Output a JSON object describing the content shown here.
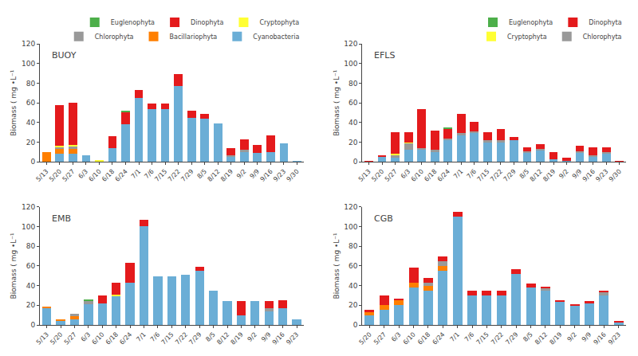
{
  "chart_data": [
    {
      "type": "bar",
      "stacked": true,
      "title": "BUOY",
      "ylabel": "Biomass ( mg •L⁻¹",
      "categories": [
        "5/13",
        "5/20",
        "5/27",
        "6/3",
        "6/10",
        "6/18",
        "6/24",
        "7/1",
        "7/6",
        "7/15",
        "7/22",
        "7/29",
        "8/5",
        "8/12",
        "8/19",
        "9/2",
        "9/9",
        "9/16",
        "9/23",
        "9/30"
      ],
      "series": [
        {
          "name": "Cyanobacteria",
          "color": "#6baed6",
          "values": [
            0,
            8,
            8,
            7,
            1,
            14,
            38,
            65,
            54,
            54,
            77,
            45,
            44,
            39,
            5,
            10,
            9,
            10,
            19,
            1
          ]
        },
        {
          "name": "Bacillariophyta",
          "color": "#ff7f00",
          "values": [
            10,
            5,
            5,
            0,
            0,
            0,
            0,
            0,
            0,
            0,
            0,
            0,
            0,
            0,
            0,
            0,
            0,
            0,
            0,
            0
          ]
        },
        {
          "name": "Chlorophyta",
          "color": "#999999",
          "values": [
            0,
            2,
            3,
            0,
            0,
            0,
            0,
            0,
            0,
            0,
            0,
            0,
            0,
            0,
            2,
            2,
            0,
            0,
            0,
            0
          ]
        },
        {
          "name": "Cryptophyta",
          "color": "#ffff33",
          "values": [
            0,
            1,
            1,
            0,
            1,
            0,
            0,
            0,
            0,
            0,
            0,
            0,
            0,
            0,
            0,
            0,
            0,
            0,
            0,
            0
          ]
        },
        {
          "name": "Dinophyta",
          "color": "#e41a1c",
          "values": [
            0,
            42,
            43,
            0,
            0,
            12,
            13,
            8,
            5,
            5,
            12,
            7,
            5,
            0,
            7,
            11,
            8,
            17,
            0,
            0
          ]
        },
        {
          "name": "Euglenophyta",
          "color": "#4daf4a",
          "values": [
            0,
            0,
            0,
            0,
            0,
            0,
            0.5,
            0,
            0,
            0,
            0,
            0,
            0,
            0,
            0,
            0,
            0,
            0,
            0,
            0
          ]
        }
      ],
      "ylim": [
        0,
        120
      ],
      "yticks": [
        0,
        20,
        40,
        60,
        80,
        100,
        120
      ],
      "grid": false,
      "legend": "upper right"
    },
    {
      "type": "bar",
      "stacked": true,
      "title": "EFLS",
      "ylabel": "Biomass ( mg •L⁻¹",
      "categories": [
        "5/13",
        "5/20",
        "5/27",
        "6/3",
        "6/10",
        "6/18",
        "6/24",
        "7/1",
        "7/6",
        "7/15",
        "7/22",
        "7/29",
        "8/5",
        "8/12",
        "8/19",
        "9/2",
        "9/9",
        "9/16",
        "9/23",
        "9/30"
      ],
      "series": [
        {
          "name": "Cyanobacteria",
          "color": "#6baed6",
          "legend": false,
          "values": [
            0,
            5,
            4,
            12,
            12,
            10,
            22,
            27,
            29,
            20,
            20,
            22,
            9,
            12,
            3,
            1,
            9,
            5,
            8,
            0
          ]
        },
        {
          "name": "Bacillariophyta",
          "color": "#ff7f00",
          "legend": false,
          "values": [
            0,
            0,
            0,
            0,
            0,
            0,
            0,
            0,
            0,
            0,
            0,
            0,
            0,
            0,
            0,
            0,
            0,
            0,
            0,
            0
          ]
        },
        {
          "name": "Chlorophyta",
          "color": "#999999",
          "values": [
            0,
            0,
            3,
            7,
            2,
            2,
            2,
            2,
            2,
            2,
            2,
            0,
            2,
            1,
            0,
            0,
            2,
            2,
            2,
            0
          ]
        },
        {
          "name": "Cryptophyta",
          "color": "#ffff33",
          "values": [
            0,
            0,
            1,
            1,
            0,
            0,
            0,
            0,
            0,
            0,
            0,
            0,
            0,
            0,
            0,
            0,
            0,
            0,
            0,
            0
          ]
        },
        {
          "name": "Dinophyta",
          "color": "#e41a1c",
          "values": [
            1,
            2,
            22,
            10,
            40,
            20,
            10,
            20,
            10,
            8,
            11,
            3,
            4,
            5,
            7,
            3,
            5,
            8,
            5,
            1
          ]
        },
        {
          "name": "Euglenophyta",
          "color": "#4daf4a",
          "values": [
            0,
            0,
            0,
            0,
            0,
            0,
            0.5,
            0,
            0,
            0,
            0,
            0,
            0,
            0,
            0,
            0,
            0,
            0,
            0,
            0
          ]
        }
      ],
      "ylim": [
        0,
        120
      ],
      "yticks": [
        0,
        20,
        40,
        60,
        80,
        100,
        120
      ],
      "grid": false,
      "legend": "upper right"
    },
    {
      "type": "bar",
      "stacked": true,
      "title": "EMB",
      "ylabel": "Biomass ( mg •L⁻¹",
      "categories": [
        "5/13",
        "5/20",
        "5/27",
        "6/3",
        "6/10",
        "6/18",
        "6/24",
        "7/1",
        "7/6",
        "7/15",
        "7/22",
        "7/29",
        "8/5",
        "8/12",
        "8/19",
        "9/2",
        "9/9",
        "9/16",
        "9/23"
      ],
      "series": [
        {
          "name": "Cyanobacteria",
          "color": "#6baed6",
          "values": [
            17,
            5,
            6,
            21,
            22,
            30,
            43,
            100,
            49,
            49,
            51,
            55,
            35,
            24,
            10,
            24,
            14,
            17,
            6
          ]
        },
        {
          "name": "Bacillariophyta",
          "color": "#ff7f00",
          "values": [
            2,
            1,
            3,
            0,
            0,
            0,
            0,
            0,
            0,
            0,
            0,
            0,
            0,
            0,
            0,
            0,
            0,
            0,
            0
          ]
        },
        {
          "name": "Chlorophyta",
          "color": "#999999",
          "values": [
            0,
            0,
            2,
            4,
            0,
            0,
            0,
            0,
            0,
            0,
            0,
            0,
            0,
            0,
            0,
            0,
            3,
            0,
            0
          ]
        },
        {
          "name": "Cryptophyta",
          "color": "#ffff33",
          "values": [
            0,
            0,
            0,
            0,
            0,
            1,
            0,
            0,
            0,
            0,
            0,
            0,
            0,
            0,
            0,
            0,
            0,
            0,
            0
          ]
        },
        {
          "name": "Dinophyta",
          "color": "#e41a1c",
          "values": [
            0,
            0,
            0,
            0,
            8,
            12,
            20,
            7,
            0,
            0,
            0,
            4,
            0,
            0,
            14,
            0,
            7,
            8,
            0
          ]
        },
        {
          "name": "Euglenophyta",
          "color": "#4daf4a",
          "values": [
            0,
            0,
            0,
            1,
            0,
            0,
            0,
            0,
            0,
            0,
            0,
            0,
            0,
            0,
            0,
            0,
            0,
            0,
            0
          ]
        }
      ],
      "ylim": [
        0,
        120
      ],
      "yticks": [
        0,
        20,
        40,
        60,
        80,
        100,
        120
      ],
      "grid": false
    },
    {
      "type": "bar",
      "stacked": true,
      "title": "CGB",
      "ylabel": "Biomass ( mg •L⁻¹",
      "categories": [
        "5/20",
        "5/27",
        "6/3",
        "6/10",
        "6/18",
        "6/24",
        "7/1",
        "7/6",
        "7/15",
        "7/22",
        "7/29",
        "8/5",
        "8/12",
        "8/19",
        "9/2",
        "9/9",
        "9/16",
        "9/23"
      ],
      "series": [
        {
          "name": "Cyanobacteria",
          "color": "#6baed6",
          "values": [
            10,
            15,
            20,
            38,
            35,
            55,
            110,
            30,
            30,
            30,
            52,
            38,
            35,
            24,
            20,
            22,
            30,
            3
          ]
        },
        {
          "name": "Bacillariophyta",
          "color": "#ff7f00",
          "values": [
            3,
            5,
            5,
            5,
            5,
            5,
            0,
            0,
            0,
            0,
            0,
            0,
            0,
            0,
            0,
            0,
            0,
            0
          ]
        },
        {
          "name": "Chlorophyta",
          "color": "#999999",
          "values": [
            0,
            0,
            0,
            0,
            3,
            5,
            0,
            0,
            0,
            0,
            0,
            0,
            2,
            0,
            0,
            0,
            3,
            0
          ]
        },
        {
          "name": "Cryptophyta",
          "color": "#ffff33",
          "values": [
            0,
            0,
            0,
            0,
            0,
            0,
            0,
            0,
            0,
            0,
            0,
            0,
            0,
            0,
            0,
            0,
            0,
            0
          ]
        },
        {
          "name": "Dinophyta",
          "color": "#e41a1c",
          "values": [
            2,
            10,
            2,
            15,
            5,
            5,
            5,
            5,
            5,
            5,
            5,
            4,
            2,
            1,
            1,
            2,
            2,
            1
          ]
        },
        {
          "name": "Euglenophyta",
          "color": "#4daf4a",
          "values": [
            0,
            0,
            0,
            0,
            0,
            0,
            0,
            0,
            0,
            0,
            0,
            0,
            0,
            0,
            0,
            0,
            0,
            0
          ]
        }
      ],
      "ylim": [
        0,
        120
      ],
      "yticks": [
        0,
        20,
        40,
        60,
        80,
        100,
        120
      ],
      "grid": false
    }
  ]
}
